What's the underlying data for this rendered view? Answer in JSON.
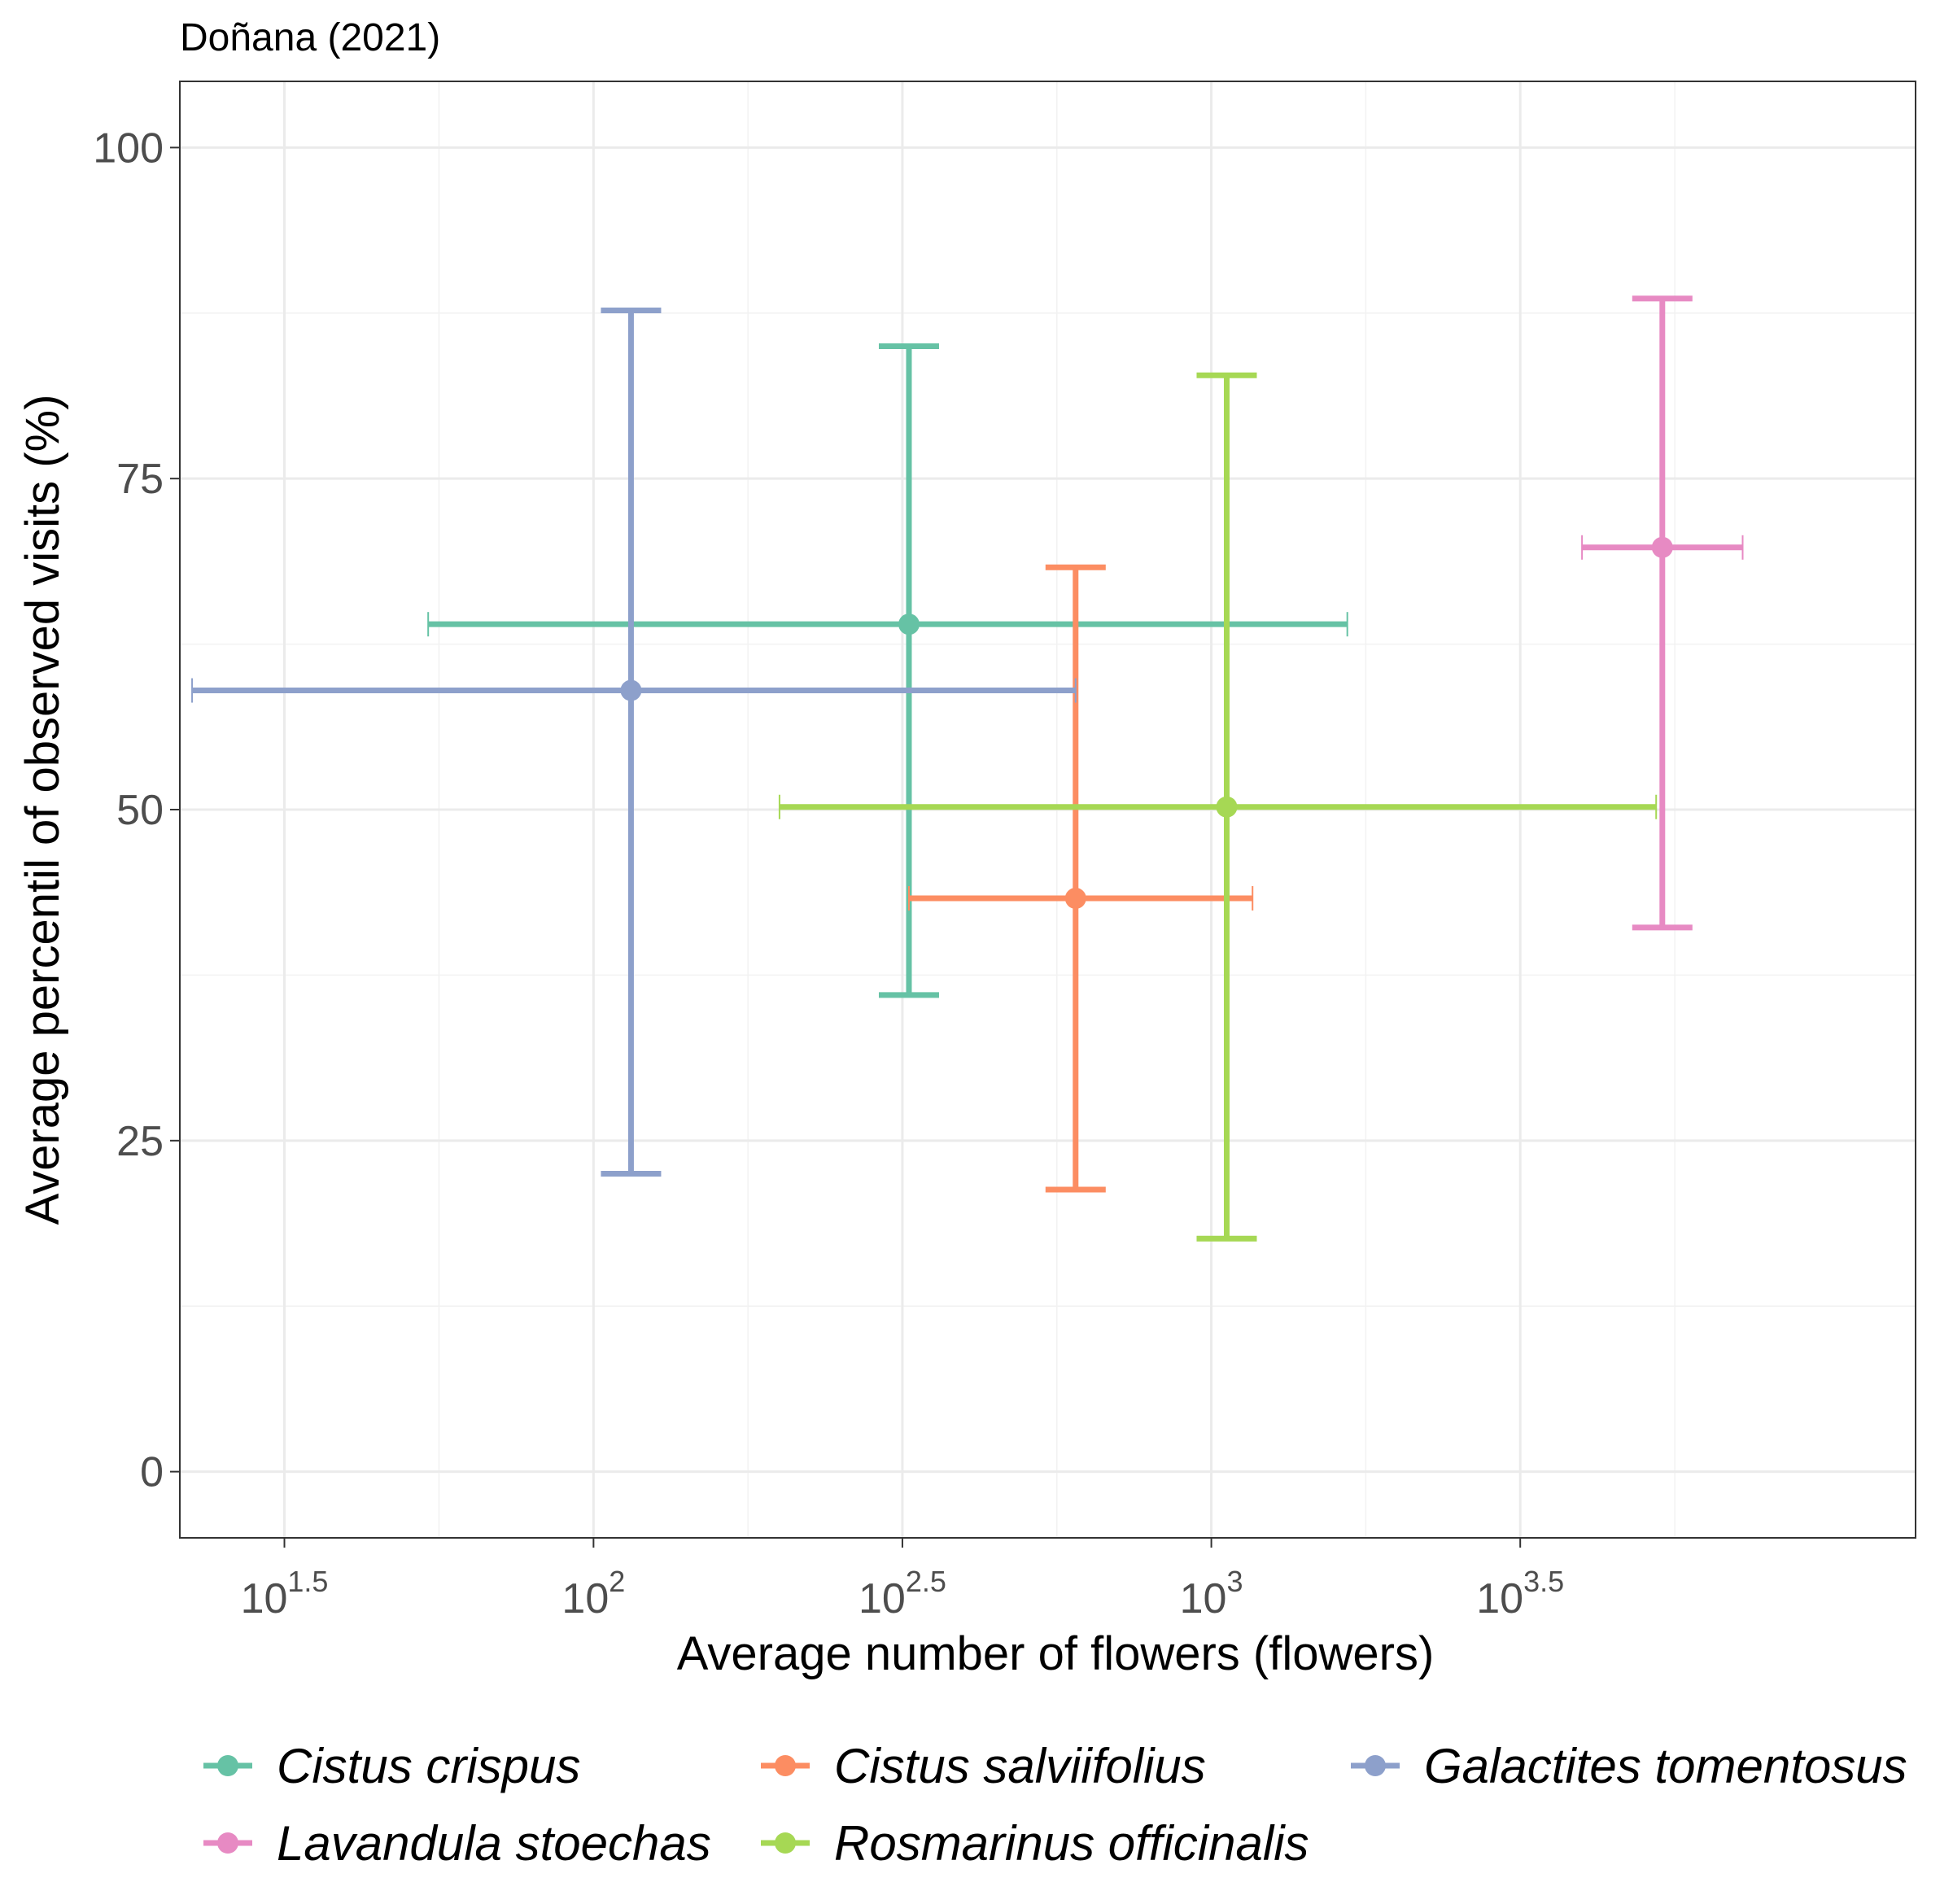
{
  "chart_data": {
    "type": "scatter",
    "title": "Doñana (2021)",
    "xlabel": "Average number of flowers (flowers)",
    "ylabel": "Average percentil of observed visits (%)",
    "x_scale": "log10",
    "x_tick_labels": [
      {
        "base": "10",
        "exp": "1.5",
        "value": 31.6
      },
      {
        "base": "10",
        "exp": "2",
        "value": 100
      },
      {
        "base": "10",
        "exp": "2.5",
        "value": 316.2
      },
      {
        "base": "10",
        "exp": "3",
        "value": 1000
      },
      {
        "base": "10",
        "exp": "3.5",
        "value": 3162.3
      }
    ],
    "y_ticks": [
      0,
      25,
      50,
      75,
      100
    ],
    "y_tick_labels": [
      "0",
      "25",
      "50",
      "75",
      "100"
    ],
    "xlim": [
      21.4,
      13800
    ],
    "ylim": [
      -5,
      105
    ],
    "grid": true,
    "legend_position": "bottom",
    "series": [
      {
        "name": "Cistus crispus",
        "color": "#66c2a5",
        "x": 324,
        "x_low": 54,
        "x_high": 1660,
        "y": 64,
        "y_low": 36,
        "y_high": 85
      },
      {
        "name": "Cistus salviifolius",
        "color": "#fc8d62",
        "x": 603,
        "x_low": 324,
        "x_high": 1166,
        "y": 43.3,
        "y_low": 21.3,
        "y_high": 68.3
      },
      {
        "name": "Galactites tomentosus",
        "color": "#8da0cb",
        "x": 115,
        "x_low": 22.4,
        "x_high": 603,
        "y": 59,
        "y_low": 22.5,
        "y_high": 87.7
      },
      {
        "name": "Lavandula stoechas",
        "color": "#e78ac3",
        "x": 5370,
        "x_low": 3981,
        "x_high": 7244,
        "y": 69.8,
        "y_low": 41.1,
        "y_high": 88.6
      },
      {
        "name": "Rosmarinus officinalis",
        "color": "#a6d854",
        "x": 1059,
        "x_low": 200,
        "x_high": 5248,
        "y": 50.2,
        "y_low": 17.6,
        "y_high": 82.8
      }
    ]
  }
}
